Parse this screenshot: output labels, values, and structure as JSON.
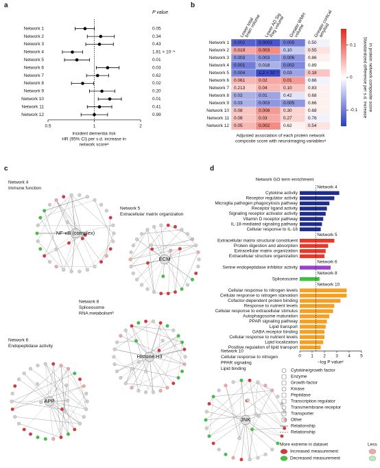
{
  "panel_labels": [
    "a",
    "b",
    "c",
    "d"
  ],
  "chart_data": [
    {
      "type": "forest",
      "categories": [
        "Network 1",
        "Network 2",
        "Network 3",
        "Network 4",
        "Network 5",
        "Network 6",
        "Network 7",
        "Network 8",
        "Network 9",
        "Network 10",
        "Network 11",
        "Network 12"
      ],
      "values": [
        0.87,
        1.1,
        1.08,
        0.72,
        0.77,
        1.22,
        1.05,
        0.84,
        1.12,
        1.26,
        1.08,
        1.0
      ],
      "lower": [
        0.75,
        0.9,
        0.88,
        0.62,
        0.64,
        1.03,
        0.89,
        0.71,
        0.93,
        1.06,
        0.9,
        0.82
      ],
      "upper": [
        1.0,
        1.35,
        1.33,
        0.84,
        0.93,
        1.45,
        1.24,
        0.99,
        1.36,
        1.5,
        1.3,
        1.22
      ],
      "p_value_header": "P value",
      "p_values": [
        "0.05",
        "0.34",
        "0.43",
        "1.81 × 10⁻⁶",
        "0.01",
        "0.03",
        "0.62",
        "0.02",
        "0.20",
        "0.01",
        "0.41",
        "0.99"
      ],
      "xlabel": [
        "Incident dementia risk",
        "HR (95% CI) per s.d. increase in",
        "network scoreᵃ"
      ],
      "xlim": [
        0.5,
        2
      ],
      "xticks": [
        0.5,
        1,
        2
      ],
      "log_x": true,
      "refline": 1,
      "color": "#000000"
    },
    {
      "type": "heatmap",
      "columns": [
        [
          "Lower total",
          "brain volume"
        ],
        [
          "Lower AD Sig",
          "Reg volume"
        ],
        [
          "Greater WMH",
          "volume"
        ],
        [
          "Greater cortical",
          "amyloid"
        ]
      ],
      "rows": [
        "Network 1",
        "Network 2",
        "Network 3",
        "Network 4",
        "Network 5",
        "Network 6",
        "Network 7",
        "Network 8",
        "Network 9",
        "Network 10",
        "Network 11",
        "Network 12"
      ],
      "values": [
        [
          0.002,
          0.0003,
          0.005,
          0.5
        ],
        [
          0.019,
          0.003,
          0.1,
          0.55
        ],
        [
          0.003,
          0.003,
          0.006,
          0.86
        ],
        [
          0.001,
          0.018,
          0.002,
          0.89
        ],
        [
          0.004,
          1.2e-05,
          0.03,
          0.18
        ],
        [
          0.061,
          0.02,
          0.01,
          0.66
        ],
        [
          0.213,
          0.04,
          0.1,
          0.83
        ],
        [
          0.02,
          0.01,
          0.42,
          0.68
        ],
        [
          0.03,
          0.003,
          0.005,
          0.66
        ],
        [
          0.08,
          0.008,
          0.3,
          0.68
        ],
        [
          0.08,
          0.03,
          0.27,
          0.76
        ],
        [
          0.05,
          0.002,
          0.62,
          0.54
        ]
      ],
      "value_labels": [
        [
          "0.002",
          "0.0003",
          "0.005",
          "0.50"
        ],
        [
          "0.019",
          "0.003",
          "0.10",
          "0.55"
        ],
        [
          "0.003",
          "0.003",
          "0.006",
          "0.86"
        ],
        [
          "0.001",
          "0.018",
          "0.002",
          "0.89"
        ],
        [
          "0.004",
          "1.2 × 10⁻⁵",
          "0.03",
          "0.18"
        ],
        [
          "0.061",
          "0.02",
          "0.01",
          "0.66"
        ],
        [
          "0.213",
          "0.04",
          "0.10",
          "0.83"
        ],
        [
          "0.02",
          "0.01",
          "0.42",
          "0.68"
        ],
        [
          "0.03",
          "0.003",
          "0.005",
          "0.66"
        ],
        [
          "0.08",
          "0.008",
          "0.30",
          "0.68"
        ],
        [
          "0.08",
          "0.03",
          "0.27",
          "0.76"
        ],
        [
          "0.05",
          "0.002",
          "0.62",
          "0.54"
        ]
      ],
      "z": [
        [
          -0.12,
          -0.13,
          -0.1,
          -0.01
        ],
        [
          0.06,
          0.08,
          -0.04,
          0.02
        ],
        [
          -0.08,
          -0.08,
          -0.08,
          0.01
        ],
        [
          -0.1,
          -0.06,
          -0.09,
          0
        ],
        [
          -0.09,
          -0.14,
          -0.07,
          0.04
        ],
        [
          0.05,
          0.06,
          0.07,
          -0.01
        ],
        [
          0.03,
          0.05,
          0.04,
          0.01
        ],
        [
          -0.06,
          -0.07,
          -0.02,
          0.01
        ],
        [
          -0.06,
          -0.08,
          -0.08,
          0.01
        ],
        [
          0.04,
          0.07,
          0.03,
          0.01
        ],
        [
          0.04,
          0.06,
          0.03,
          -0.01
        ],
        [
          0.05,
          0.08,
          0.01,
          0.02
        ]
      ],
      "clim": [
        -0.15,
        0.15
      ],
      "cticks": [
        -0.1,
        0,
        0.1
      ],
      "colorscale": [
        "#2b3cc4",
        "#ffffff",
        "#e8271b"
      ],
      "colorbar_label": [
        "Standardized difference per s.d. increase",
        "in protein network composite score"
      ],
      "xlabel": [
        "Adjusted association of each protein network",
        "composite score with neuroimaging variablesᵃ"
      ]
    },
    {
      "type": "barh",
      "title": "Network GO term enrichment",
      "groups": [
        {
          "name": "Network 4",
          "color": "#1f2d8f",
          "categories": [
            "Cytokine activity",
            "Receptor regulator activity",
            "Microglia pathogen phagocytosis pathway",
            "Receptor ligand activity",
            "Signaling receptor activator activity",
            "Vitamin D receptor pathway",
            "IL-18-mediated signaling pathway",
            "Cellular response to IL-18"
          ],
          "values": [
            3.2,
            2.8,
            2.4,
            2.2,
            2.1,
            1.9,
            1.8,
            1.7
          ]
        },
        {
          "name": "Network 5",
          "color": "#e8382a",
          "categories": [
            "Extracellular matrix structural constituent",
            "Protein digestion and absorption",
            "Extracellular matrix organization",
            "Extracellular structure organization"
          ],
          "values": [
            2.8,
            2.3,
            2.1,
            2.0
          ]
        },
        {
          "name": "Network 6",
          "color": "#9b3fd1",
          "categories": [
            "Serine endopeptidase inhibitor activity"
          ],
          "values": [
            2.5
          ]
        },
        {
          "name": "Network 8",
          "color": "#3fbf3f",
          "categories": [
            "Spliceosome"
          ],
          "values": [
            1.6
          ]
        },
        {
          "name": "Network 10",
          "color": "#f5a023",
          "categories": [
            "Cellular response to nitrogen levels",
            "Cellular response to nitrogen starvation",
            "Cofactor-dependent protein binding",
            "Response to nutrient levels",
            "Cellular response to extracellular stimulus",
            "Autophagosome maturation",
            "PPAR signaling pathway",
            "Lipid transport",
            "GABA receptor binding",
            "Cellular response to nutrient levels",
            "Lipid localization",
            "Positive regulation of lipid transport"
          ],
          "values": [
            3.8,
            3.8,
            3.3,
            2.8,
            2.7,
            2.4,
            2.2,
            2.1,
            2.0,
            2.0,
            1.9,
            1.7
          ]
        }
      ],
      "xlim": [
        0,
        5
      ],
      "xticks": [
        0,
        1,
        2,
        3,
        4,
        5
      ],
      "refline": 1.3,
      "xlabel": "−log P valueᶜ"
    }
  ],
  "networks": [
    {
      "title_lines": [
        "Network 4",
        "Immune function"
      ],
      "hub": "NF-κB (complex)"
    },
    {
      "title_lines": [
        "Network 5",
        "Extracellular matrix organization"
      ],
      "hub": "ECM"
    },
    {
      "title_lines": [
        "Network 8",
        "Spliceosome",
        "RNA metabolismᵇ"
      ],
      "hub": "Histone H3"
    },
    {
      "title_lines": [
        "Network 6",
        "Endopeptidase activity"
      ],
      "hub": "APP"
    },
    {
      "title_lines": [
        "Network 10",
        "Cellular response to nitrogen",
        "PPAR signaling",
        "Lipid binding"
      ],
      "hub": "JNK"
    }
  ],
  "legend": {
    "items": [
      "Cytokine/growth factor",
      "Enzyme",
      "Growth factor",
      "Kinase",
      "Peptidase",
      "Transcription regulator",
      "Transmembrane receptor",
      "Transporter",
      "Other",
      "Relationship",
      "Relationship"
    ],
    "extreme_header": "More extreme in dataset",
    "less": "Less",
    "measurements": [
      "Increased measurement",
      "Decreased measurement"
    ]
  }
}
